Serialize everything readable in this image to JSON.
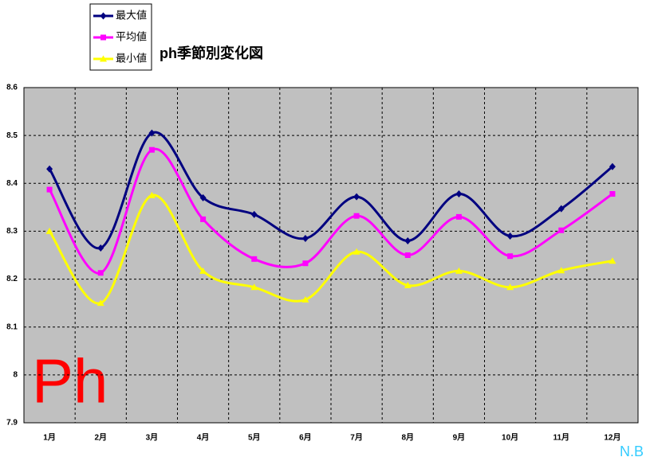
{
  "chart_data": {
    "type": "line",
    "title": "ph季節別変化図",
    "categories": [
      "1月",
      "2月",
      "3月",
      "4月",
      "5月",
      "6月",
      "7月",
      "8月",
      "9月",
      "10月",
      "11月",
      "12月"
    ],
    "series": [
      {
        "name": "最大値",
        "color": "#000080",
        "marker": "diamond",
        "values": [
          8.43,
          8.265,
          8.505,
          8.37,
          8.335,
          8.285,
          8.372,
          8.28,
          8.378,
          8.29,
          8.347,
          8.435
        ]
      },
      {
        "name": "平均値",
        "color": "#ff00ff",
        "marker": "square",
        "values": [
          8.387,
          8.213,
          8.47,
          8.325,
          8.242,
          8.233,
          8.332,
          8.25,
          8.33,
          8.248,
          8.302,
          8.378
        ]
      },
      {
        "name": "最小値",
        "color": "#ffff00",
        "marker": "triangle",
        "values": [
          8.3,
          8.15,
          8.375,
          8.217,
          8.183,
          8.157,
          8.257,
          8.187,
          8.217,
          8.183,
          8.218,
          8.238
        ]
      }
    ],
    "ylim": [
      7.9,
      8.6
    ],
    "yticks": [
      7.9,
      8,
      8.1,
      8.2,
      8.3,
      8.4,
      8.5,
      8.6
    ],
    "grid": true,
    "smooth": true,
    "watermark": "Ph",
    "signature": "N.B"
  }
}
